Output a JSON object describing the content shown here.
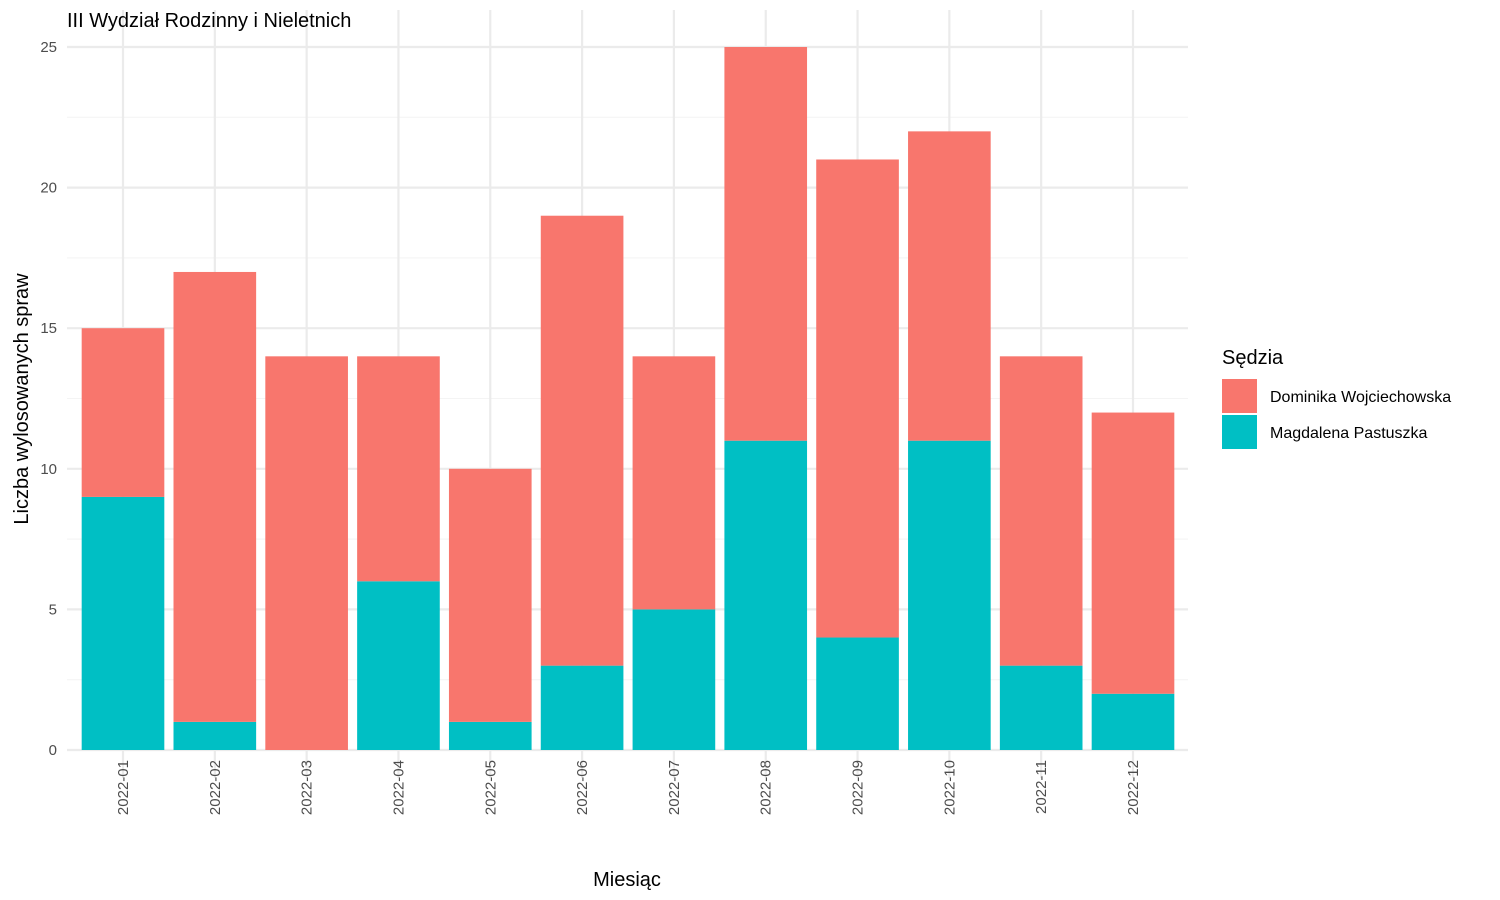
{
  "chart_data": {
    "type": "bar",
    "stacked": true,
    "title": "III Wydział Rodzinny i Nieletnich",
    "xlabel": "Miesiąc",
    "ylabel": "Liczba wylosowanych spraw",
    "categories": [
      "2022-01",
      "2022-02",
      "2022-03",
      "2022-04",
      "2022-05",
      "2022-06",
      "2022-07",
      "2022-08",
      "2022-09",
      "2022-10",
      "2022-11",
      "2022-12"
    ],
    "series": [
      {
        "name": "Magdalena Pastuszka",
        "color": "#00BFC4",
        "values": [
          9,
          1,
          0,
          6,
          1,
          3,
          5,
          11,
          4,
          11,
          3,
          2
        ]
      },
      {
        "name": "Dominika Wojciechowska",
        "color": "#F8766D",
        "values": [
          6,
          16,
          14,
          8,
          9,
          16,
          9,
          14,
          17,
          11,
          11,
          10
        ]
      }
    ],
    "ylim": [
      0,
      25
    ],
    "yticks": [
      0,
      5,
      10,
      15,
      20,
      25
    ],
    "grid": true,
    "legend": {
      "title": "Sędzia",
      "position": "right",
      "entries": [
        "Dominika Wojciechowska",
        "Magdalena Pastuszka"
      ]
    },
    "x_tick_rotation": "vertical"
  }
}
